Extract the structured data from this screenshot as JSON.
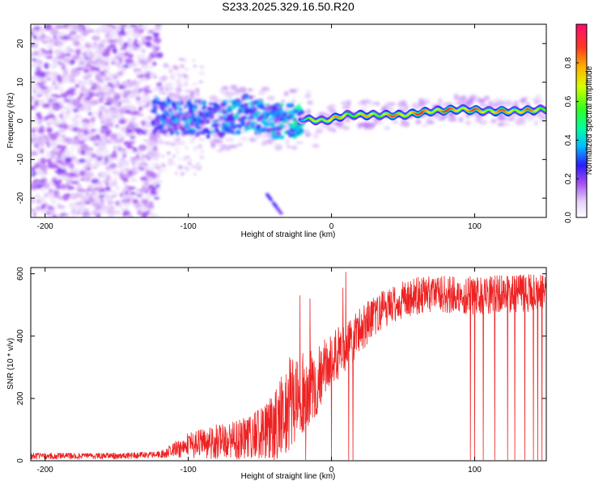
{
  "title": "S233.2025.329.16.50.R20",
  "colors": {
    "snr_line": "#ee2222",
    "colormap": [
      "#f0f0ff",
      "#d8b8f5",
      "#b070ee",
      "#8000ff",
      "#2050ff",
      "#00e0ff",
      "#00ff60",
      "#ffdd00",
      "#ff3030",
      "#ff1060"
    ]
  },
  "chart_data": [
    {
      "type": "heatmap",
      "name": "spectrogram",
      "xlabel": "Height of straight line (km)",
      "ylabel": "Frequency (Hz)",
      "xlim": [
        -210,
        150
      ],
      "ylim": [
        -25,
        25
      ],
      "xticks": [
        -200,
        -100,
        0,
        100
      ],
      "yticks": [
        -20,
        -10,
        0,
        10,
        20
      ],
      "colorbar": {
        "label": "Normalized spectral amplitude",
        "range": [
          0.0,
          1.0
        ],
        "ticks": [
          0.0,
          0.2,
          0.4,
          0.6,
          0.8
        ]
      },
      "ridge": [
        {
          "x": -120,
          "freq": 1.5,
          "amp": 0.3
        },
        {
          "x": -100,
          "freq": 1.0,
          "amp": 0.33
        },
        {
          "x": -80,
          "freq": 0.0,
          "amp": 0.32
        },
        {
          "x": -60,
          "freq": 2.0,
          "amp": 0.35
        },
        {
          "x": -40,
          "freq": 0.0,
          "amp": 0.33
        },
        {
          "x": -20,
          "freq": 0.5,
          "amp": 0.45
        },
        {
          "x": -5,
          "freq": 0.0,
          "amp": 0.9
        },
        {
          "x": 10,
          "freq": 1.5,
          "amp": 0.75
        },
        {
          "x": 30,
          "freq": 1.5,
          "amp": 0.8
        },
        {
          "x": 50,
          "freq": 1.5,
          "amp": 0.9
        },
        {
          "x": 70,
          "freq": 2.5,
          "amp": 0.9
        },
        {
          "x": 90,
          "freq": 3.0,
          "amp": 0.9
        },
        {
          "x": 110,
          "freq": 2.5,
          "amp": 0.85
        },
        {
          "x": 130,
          "freq": 2.5,
          "amp": 0.88
        },
        {
          "x": 150,
          "freq": 3.0,
          "amp": 0.8
        }
      ],
      "secondary_feature": {
        "x_range": [
          -45,
          -35
        ],
        "freq_range": [
          -24,
          -19
        ]
      }
    },
    {
      "type": "line",
      "name": "snr",
      "xlabel": "Height of straight line (km)",
      "ylabel": "SNR (10 * v/v)",
      "xlim": [
        -210,
        150
      ],
      "ylim": [
        0,
        620
      ],
      "xticks": [
        -200,
        -100,
        0,
        100
      ],
      "yticks": [
        0,
        200,
        400,
        600
      ],
      "trend": [
        {
          "x": -210,
          "y": 15
        },
        {
          "x": -150,
          "y": 15
        },
        {
          "x": -120,
          "y": 20
        },
        {
          "x": -100,
          "y": 50
        },
        {
          "x": -80,
          "y": 60
        },
        {
          "x": -60,
          "y": 70
        },
        {
          "x": -40,
          "y": 100
        },
        {
          "x": -30,
          "y": 180
        },
        {
          "x": -20,
          "y": 220
        },
        {
          "x": -10,
          "y": 260
        },
        {
          "x": 0,
          "y": 320
        },
        {
          "x": 10,
          "y": 370
        },
        {
          "x": 20,
          "y": 420
        },
        {
          "x": 30,
          "y": 460
        },
        {
          "x": 40,
          "y": 500
        },
        {
          "x": 60,
          "y": 530
        },
        {
          "x": 80,
          "y": 535
        },
        {
          "x": 100,
          "y": 530
        },
        {
          "x": 120,
          "y": 535
        },
        {
          "x": 150,
          "y": 540
        }
      ],
      "noise_amplitude": [
        {
          "x": -210,
          "y": 10
        },
        {
          "x": -120,
          "y": 10
        },
        {
          "x": -100,
          "y": 40
        },
        {
          "x": -50,
          "y": 80
        },
        {
          "x": -30,
          "y": 150
        },
        {
          "x": 0,
          "y": 90
        },
        {
          "x": 40,
          "y": 60
        },
        {
          "x": 150,
          "y": 60
        }
      ],
      "dropouts_x": [
        -40,
        -22,
        -18,
        0,
        12,
        15,
        97,
        100,
        106,
        114,
        123,
        128,
        135,
        141,
        144,
        147
      ],
      "spikes": [
        {
          "x": -22,
          "y": 530
        },
        {
          "x": -15,
          "y": 520
        },
        {
          "x": 10,
          "y": 605
        },
        {
          "x": 8,
          "y": 555
        }
      ]
    }
  ]
}
